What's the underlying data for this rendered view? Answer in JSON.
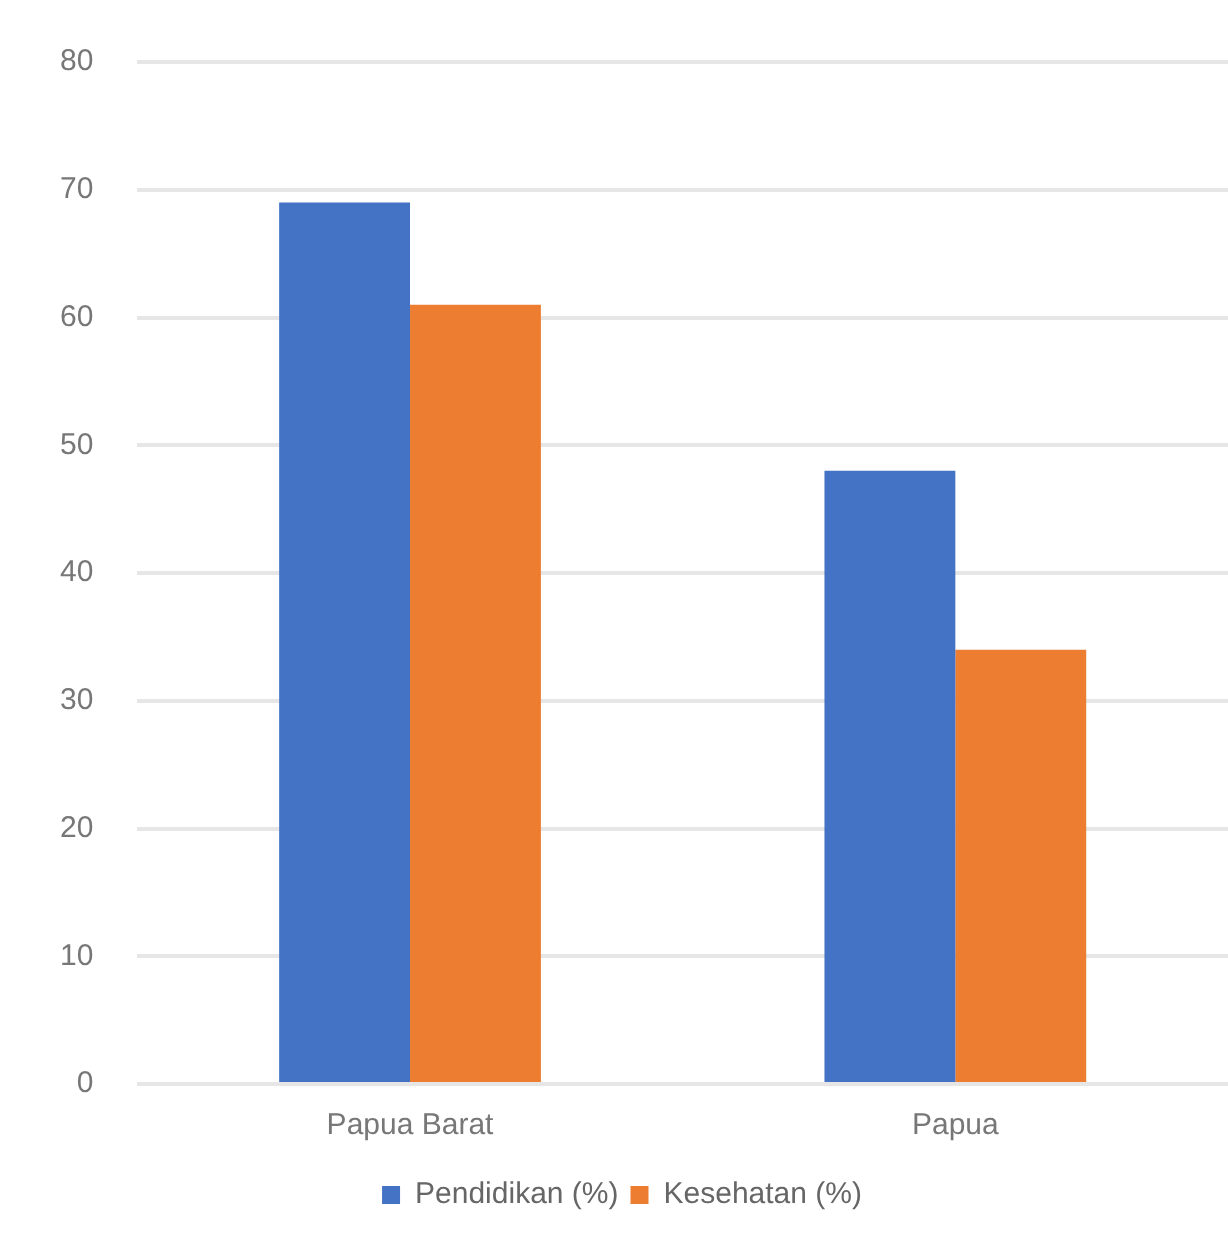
{
  "chart_data": {
    "type": "bar",
    "categories": [
      "Papua Barat",
      "Papua"
    ],
    "series": [
      {
        "name": "Pendidikan (%)",
        "color": "#4472c4",
        "values": [
          69,
          48
        ]
      },
      {
        "name": "Kesehatan (%)",
        "color": "#ed7d31",
        "values": [
          61,
          34
        ]
      }
    ],
    "ylim": [
      0,
      80
    ],
    "yticks": [
      0,
      10,
      20,
      30,
      40,
      50,
      60,
      70,
      80
    ],
    "grid": "y",
    "legend": "bottom"
  }
}
